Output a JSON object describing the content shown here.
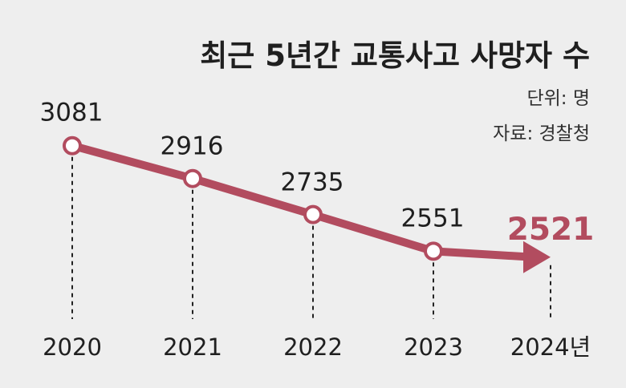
{
  "chart_data": {
    "type": "line",
    "title": "최근 5년간 교통사고 사망자 수",
    "unit_text": "단위: 명",
    "source_text": "자료: 경찰청",
    "categories": [
      "2020",
      "2021",
      "2022",
      "2023",
      "2024"
    ],
    "x_tick_labels": [
      "2020",
      "2021",
      "2022",
      "2023",
      "2024년"
    ],
    "values": [
      3081,
      2916,
      2735,
      2551,
      2521
    ],
    "data_labels": [
      "3081",
      "2916",
      "2735",
      "2551",
      "2521"
    ],
    "highlight_index": 4,
    "colors": {
      "background": "#eeeeee",
      "line": "#b24c5f",
      "marker_fill": "#ffffff",
      "highlight_text": "#b24c5f",
      "guide": "#222222"
    }
  }
}
